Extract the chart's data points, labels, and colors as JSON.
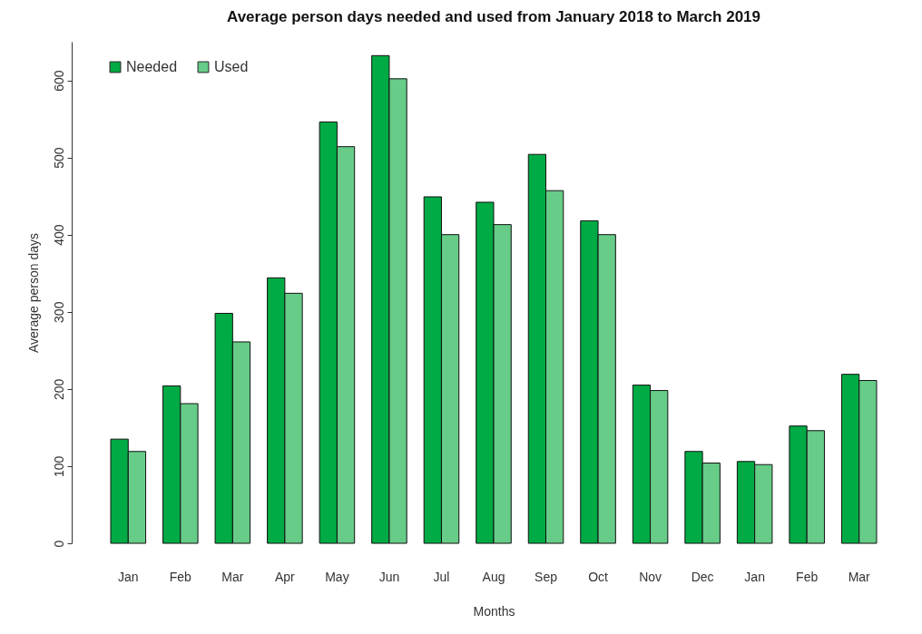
{
  "chart_data": {
    "type": "bar",
    "title": "Average person days needed and used from January 2018 to March 2019",
    "xlabel": "Months",
    "ylabel": "Average person days",
    "categories": [
      "Jan",
      "Feb",
      "Mar",
      "Apr",
      "May",
      "Jun",
      "Jul",
      "Aug",
      "Sep",
      "Oct",
      "Nov",
      "Dec",
      "Jan",
      "Feb",
      "Mar"
    ],
    "series": [
      {
        "name": "Needed",
        "color": "#00aa44",
        "values": [
          135,
          204,
          298,
          344,
          546,
          632,
          449,
          442,
          504,
          418,
          205,
          119,
          106,
          152,
          219
        ]
      },
      {
        "name": "Used",
        "color": "#66cc88",
        "values": [
          119,
          181,
          261,
          324,
          514,
          602,
          400,
          413,
          457,
          400,
          198,
          104,
          102,
          146,
          211
        ]
      }
    ],
    "ylim": [
      0,
      650
    ],
    "yticks": [
      0,
      100,
      200,
      300,
      400,
      500,
      600
    ],
    "grid": false,
    "legend": "top left"
  }
}
